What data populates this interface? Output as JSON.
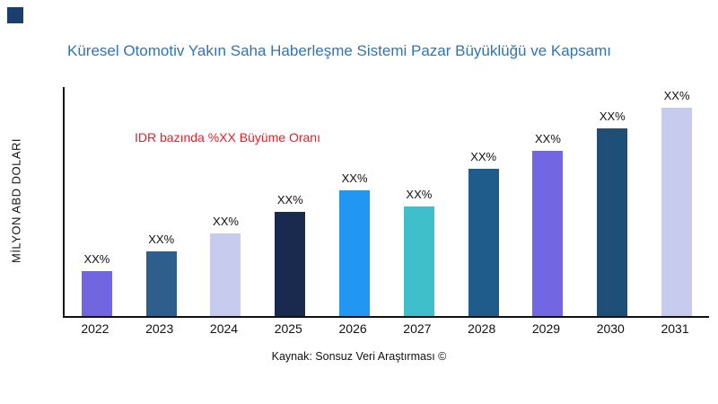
{
  "logo": {
    "color": "#1A3E6E"
  },
  "header": {
    "title": "Küresel Otomotiv Yakın Saha Haberleşme Sistemi Pazar Büyüklüğü ve Kapsamı",
    "title_color": "#2E75B6"
  },
  "annotation": {
    "text": "IDR bazında %XX Büyüme Oranı",
    "color": "#ED1C24"
  },
  "axis": {
    "ylabel": "MİLYON ABD DOLARI"
  },
  "footer": {
    "caption": "Kaynak: Sonsuz Veri Araştırması ©"
  },
  "chart_data": {
    "type": "bar",
    "title": "Küresel Otomotiv Yakın Saha Haberleşme Sistemi Pazar Büyüklüğü ve Kapsamı",
    "xlabel": "",
    "ylabel": "MİLYON ABD DOLARI",
    "categories": [
      "2022",
      "2023",
      "2024",
      "2025",
      "2026",
      "2027",
      "2028",
      "2029",
      "2030",
      "2031"
    ],
    "values": [
      50,
      72,
      92,
      116,
      140,
      122,
      164,
      184,
      209,
      232
    ],
    "bar_labels": [
      "XX%",
      "XX%",
      "XX%",
      "XX%",
      "XX%",
      "XX%",
      "XX%",
      "XX%",
      "XX%",
      "XX%"
    ],
    "bar_colors": [
      "#7166E0",
      "#2E5E8C",
      "#C7CCEF",
      "#1A2A4F",
      "#2196F3",
      "#3FBFC9",
      "#1F5C8B",
      "#7366E3",
      "#1F4E79",
      "#C7CCEF"
    ],
    "ylim": [
      0,
      260
    ],
    "grid": false,
    "legend": false,
    "annotation": "IDR bazında %XX Büyüme Oranı"
  }
}
